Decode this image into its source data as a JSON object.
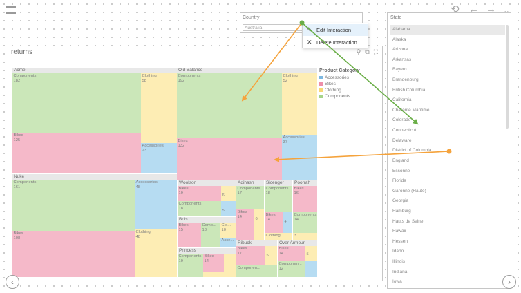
{
  "card": {
    "title": "returns"
  },
  "country": {
    "label": "Country",
    "value": "Australia"
  },
  "menu": {
    "items": [
      "Edit Interaction",
      "Delete Interaction"
    ]
  },
  "state": {
    "label": "State",
    "items": [
      "Alabama",
      "Alaska",
      "Arizona",
      "Arkansas",
      "Bayern",
      "Brandenburg",
      "British Columbia",
      "California",
      "Charente Maritime",
      "Colorado",
      "Connecticut",
      "Delaware",
      "District of Columbia",
      "England",
      "Essonne",
      "Florida",
      "Garonne (Haute)",
      "Georgia",
      "Hamburg",
      "Hauts de Seine",
      "Hawaii",
      "Hessen",
      "Idaho",
      "Illinois",
      "Indiana",
      "Iowa"
    ]
  },
  "legend": {
    "title": "Product Category",
    "items": [
      {
        "label": "Accessories",
        "color": "#b6dcf2"
      },
      {
        "label": "Bikes",
        "color": "#f5b9c9"
      },
      {
        "label": "Clothing",
        "color": "#fdedb4"
      },
      {
        "label": "Components",
        "color": "#cbe7b9"
      }
    ]
  },
  "treemap": {
    "acme": {
      "name": "Acme",
      "components": {
        "label": "Components",
        "value": "182"
      },
      "bikes": {
        "label": "Bikes",
        "value": "125"
      },
      "clothing": {
        "label": "Clothing",
        "value": "58"
      },
      "accessories": {
        "label": "Accessories",
        "value": "23"
      }
    },
    "oldbalance": {
      "name": "Old Balance",
      "components": {
        "label": "Components",
        "value": "192"
      },
      "bikes": {
        "label": "Bikes",
        "value": "132"
      },
      "clothing": {
        "label": "Clothing",
        "value": "52"
      },
      "accessories": {
        "label": "Accessories",
        "value": "37"
      }
    },
    "nuke": {
      "name": "Nuke",
      "components": {
        "label": "Components",
        "value": "161"
      },
      "bikes": {
        "label": "Bikes",
        "value": "108"
      },
      "accessories": {
        "label": "Accessories",
        "value": "48"
      },
      "clothing": {
        "label": "Clothing",
        "value": "48"
      }
    },
    "woolson": {
      "name": "Woolson",
      "bikes": {
        "label": "Bikes",
        "value": "19"
      },
      "clothing": {
        "label": "",
        "value": "6"
      },
      "components": {
        "label": "Components",
        "value": "18"
      },
      "accessories": {
        "label": "",
        "value": "5"
      }
    },
    "adihash": {
      "name": "Adihash",
      "components": {
        "label": "Components",
        "value": "17"
      },
      "bikes": {
        "label": "Bikes",
        "value": "14"
      },
      "clothing": {
        "label": "",
        "value": "6"
      },
      "accessories": {
        "label": "",
        "value": "6"
      }
    },
    "sicenger": {
      "name": "Sicenger",
      "components": {
        "label": "Components",
        "value": "18"
      },
      "bikes": {
        "label": "Bikes",
        "value": "14"
      },
      "clothing": {
        "label": "Clothing",
        "value": "6"
      },
      "accessories": {
        "label": "",
        "value": "4"
      }
    },
    "poorrah": {
      "name": "Poorrah",
      "bikes": {
        "label": "Bikes",
        "value": "16"
      },
      "components": {
        "label": "Components",
        "value": "14"
      },
      "clothing": {
        "label": "",
        "value": "3"
      }
    },
    "bois": {
      "name": "Bois",
      "bikes": {
        "label": "Bikes",
        "value": "15"
      },
      "components": {
        "label": "Comp...",
        "value": "13"
      },
      "clothing": {
        "label": "Clo...",
        "value": "10"
      },
      "accessories": {
        "label": "Acce...",
        "value": "7"
      }
    },
    "princess": {
      "name": "Princess",
      "components": {
        "label": "Components",
        "value": "19"
      },
      "bikes": {
        "label": "Bikes",
        "value": "14"
      },
      "clothing": {
        "label": "",
        "value": ""
      }
    },
    "ribuck": {
      "name": "Ribuck",
      "bikes": {
        "label": "Bikes",
        "value": "17"
      },
      "clothing": {
        "label": "",
        "value": "5"
      },
      "components": {
        "label": "Componen...",
        "value": ""
      }
    },
    "overarmour": {
      "name": "Over Armour",
      "bikes": {
        "label": "Bikes",
        "value": "14"
      },
      "components": {
        "label": "Componen...",
        "value": "12"
      },
      "clothing": {
        "label": "",
        "value": "5"
      }
    }
  }
}
